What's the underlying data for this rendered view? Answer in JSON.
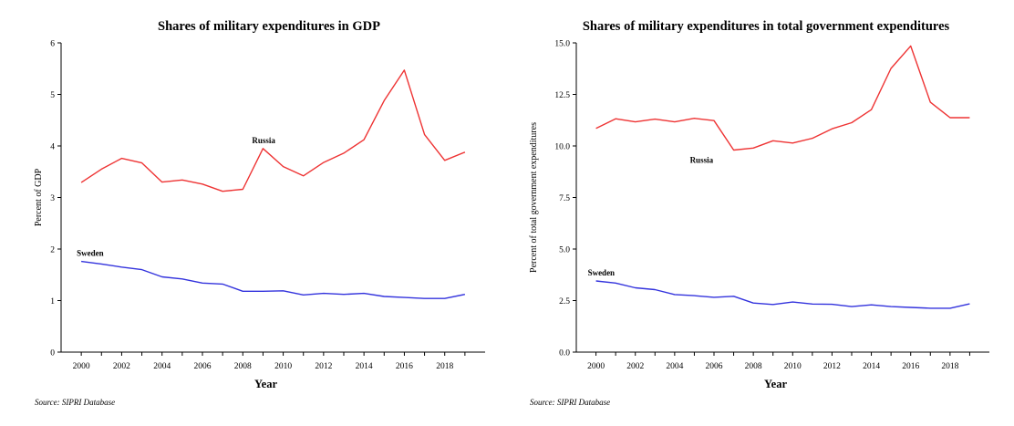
{
  "chart_data": [
    {
      "type": "line",
      "title": "Shares of military expenditures in GDP",
      "xlabel": "Year",
      "ylabel": "Percent of GDP",
      "source": "Source: SIPRI Database",
      "xlim": [
        1999,
        2020
      ],
      "ylim": [
        0,
        6
      ],
      "x_ticks": [
        2000,
        2002,
        2004,
        2006,
        2008,
        2010,
        2012,
        2014,
        2016,
        2018
      ],
      "y_ticks": [
        "0",
        "1",
        "2",
        "3",
        "4",
        "5",
        "6"
      ],
      "y_tick_values": [
        0,
        1,
        2,
        3,
        4,
        5,
        6
      ],
      "series": [
        {
          "name": "Russia",
          "color": "#ee3333",
          "x": [
            2000,
            2001,
            2002,
            2003,
            2004,
            2005,
            2006,
            2007,
            2008,
            2009,
            2010,
            2011,
            2012,
            2013,
            2014,
            2015,
            2016,
            2017,
            2018,
            2019
          ],
          "values": [
            3.29,
            3.55,
            3.76,
            3.67,
            3.3,
            3.34,
            3.26,
            3.12,
            3.16,
            3.95,
            3.6,
            3.42,
            3.68,
            3.86,
            4.12,
            4.88,
            5.47,
            4.22,
            3.72,
            3.88
          ]
        },
        {
          "name": "Sweden",
          "color": "#3333dd",
          "x": [
            2000,
            2001,
            2002,
            2003,
            2004,
            2005,
            2006,
            2007,
            2008,
            2009,
            2010,
            2011,
            2012,
            2013,
            2014,
            2015,
            2016,
            2017,
            2018,
            2019
          ],
          "values": [
            1.76,
            1.71,
            1.65,
            1.6,
            1.46,
            1.42,
            1.34,
            1.32,
            1.18,
            1.18,
            1.19,
            1.11,
            1.14,
            1.12,
            1.14,
            1.08,
            1.06,
            1.04,
            1.04,
            1.12
          ]
        }
      ]
    },
    {
      "type": "line",
      "title": "Shares of military expenditures in total government expenditures",
      "xlabel": "Year",
      "ylabel": "Percent of total government expenditures",
      "source": "Source: SIPRI Database",
      "xlim": [
        1999,
        2020
      ],
      "ylim": [
        0,
        15
      ],
      "x_ticks": [
        2000,
        2002,
        2004,
        2006,
        2008,
        2010,
        2012,
        2014,
        2016,
        2018
      ],
      "y_ticks": [
        "0.0",
        "2.5",
        "5.0",
        "7.5",
        "10.0",
        "12.5",
        "15.0"
      ],
      "y_tick_values": [
        0,
        2.5,
        5,
        7.5,
        10,
        12.5,
        15
      ],
      "series": [
        {
          "name": "Russia",
          "color": "#ee3333",
          "x": [
            2000,
            2001,
            2002,
            2003,
            2004,
            2005,
            2006,
            2007,
            2008,
            2009,
            2010,
            2011,
            2012,
            2013,
            2014,
            2015,
            2016,
            2017,
            2018,
            2019
          ],
          "values": [
            10.85,
            11.32,
            11.17,
            11.3,
            11.17,
            11.34,
            11.23,
            9.8,
            9.9,
            10.25,
            10.14,
            10.37,
            10.83,
            11.13,
            11.76,
            13.76,
            14.85,
            12.12,
            11.37,
            11.37
          ]
        },
        {
          "name": "Sweden",
          "color": "#3333dd",
          "x": [
            2000,
            2001,
            2002,
            2003,
            2004,
            2005,
            2006,
            2007,
            2008,
            2009,
            2010,
            2011,
            2012,
            2013,
            2014,
            2015,
            2016,
            2017,
            2018,
            2019
          ],
          "values": [
            3.45,
            3.35,
            3.12,
            3.03,
            2.79,
            2.74,
            2.66,
            2.71,
            2.38,
            2.31,
            2.43,
            2.33,
            2.32,
            2.21,
            2.29,
            2.21,
            2.17,
            2.13,
            2.13,
            2.34
          ]
        }
      ]
    }
  ]
}
